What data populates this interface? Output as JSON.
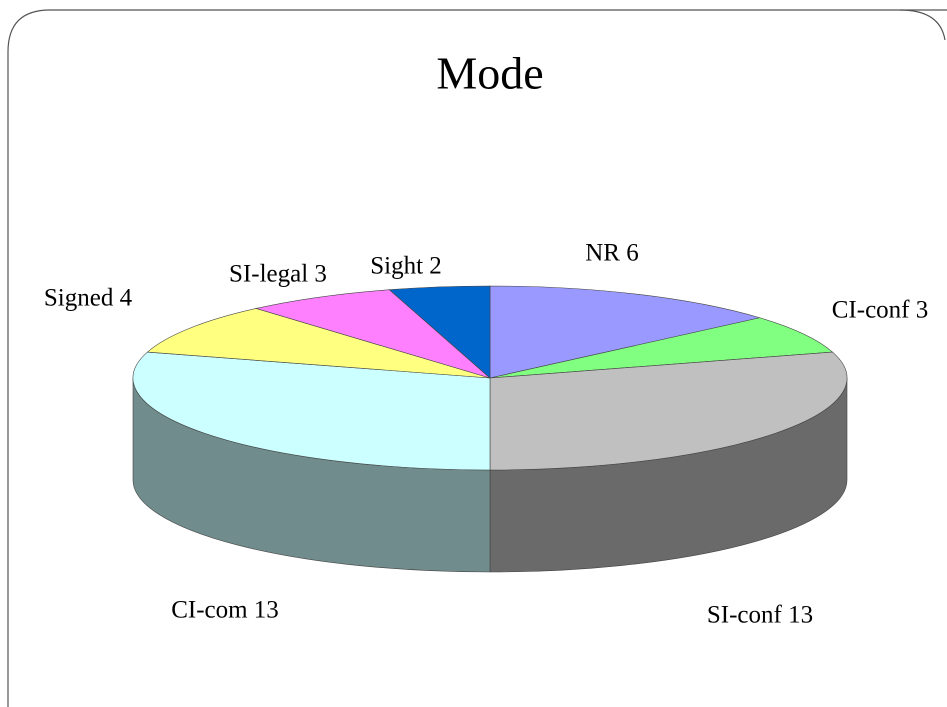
{
  "chart_data": {
    "type": "pie3d",
    "title": "Mode",
    "values": [
      6,
      3,
      13,
      13,
      4,
      3,
      2
    ],
    "value_labels": [
      "NR 6",
      "CI-conf 3",
      "SI-conf 13",
      "CI-com 13",
      "Signed 4",
      "SI-legal 3",
      "Sight 2"
    ],
    "colors": [
      "#9999ff",
      "#80ff80",
      "#c0c0c0",
      "#ccffff",
      "#ffff80",
      "#ff80ff",
      "#0066cc"
    ]
  }
}
